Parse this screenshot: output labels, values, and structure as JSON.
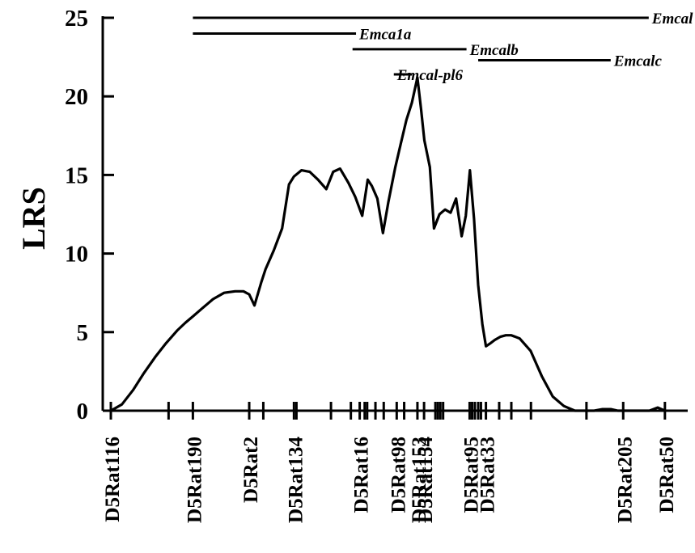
{
  "chart_data": {
    "type": "line",
    "ylabel": "LRS",
    "ylim": [
      0,
      25
    ],
    "y_ticks": [
      0,
      5,
      10,
      15,
      20,
      25
    ],
    "grid": false,
    "markers": [
      {
        "name": "D5Rat116",
        "pos": 0
      },
      {
        "name": "D5Rat190",
        "pos": 29.7
      },
      {
        "name": "D5Rat2",
        "pos": 50.1
      },
      {
        "name": "D5Rat134",
        "pos": 66.3
      },
      {
        "name": "D5Rat16",
        "pos": 90.1
      },
      {
        "name": "D5Rat98",
        "pos": 103.5
      },
      {
        "name": "D5Rat153",
        "pos": 111.0
      },
      {
        "name": "D5Rat154",
        "pos": 113.4
      },
      {
        "name": "D5Rat95",
        "pos": 129.9
      },
      {
        "name": "D5Rat33",
        "pos": 135.8
      },
      {
        "name": "D5Rat205",
        "pos": 185.5
      },
      {
        "name": "D5Rat50",
        "pos": 200.6
      }
    ],
    "extra_tick_positions": [
      20.9,
      55.2,
      67.2,
      79.7,
      86.9,
      91.9,
      92.8,
      95.8,
      98.8,
      106.2,
      117.5,
      118.4,
      119.3,
      120.3,
      130.8,
      131.8,
      133.0,
      134.0,
      140.6,
      145.0,
      152.1,
      172.2
    ],
    "x": [
      0,
      4,
      8,
      12,
      16,
      20,
      24,
      27,
      29.7,
      33,
      37,
      41,
      45,
      48,
      50.1,
      52,
      54.5,
      56,
      59,
      62,
      64.5,
      66.3,
      69,
      72,
      75,
      78,
      80.5,
      83,
      86,
      88.5,
      91,
      93,
      94.5,
      96.5,
      98.5,
      100.5,
      103,
      105,
      107,
      109,
      111,
      112.3,
      113.5,
      115.5,
      117,
      119,
      121,
      123,
      125,
      127,
      128.5,
      130,
      131.5,
      133,
      134.5,
      135.8,
      137.5,
      139,
      141,
      143,
      145,
      148,
      152,
      156,
      160,
      164,
      168,
      172,
      175,
      178,
      181,
      183.5,
      185.5,
      188,
      191,
      195,
      198,
      200.6
    ],
    "values": [
      0,
      0.4,
      1.3,
      2.4,
      3.4,
      4.3,
      5.1,
      5.6,
      6.0,
      6.5,
      7.1,
      7.5,
      7.6,
      7.6,
      7.4,
      6.7,
      8.2,
      9.0,
      10.2,
      11.6,
      14.4,
      14.9,
      15.3,
      15.2,
      14.7,
      14.1,
      15.2,
      15.4,
      14.5,
      13.6,
      12.4,
      14.7,
      14.3,
      13.5,
      11.3,
      13.3,
      15.5,
      17.0,
      18.5,
      19.6,
      21.2,
      19.2,
      17.2,
      15.5,
      11.6,
      12.5,
      12.8,
      12.6,
      13.5,
      11.1,
      12.4,
      15.3,
      12.2,
      8.0,
      5.5,
      4.1,
      4.3,
      4.5,
      4.7,
      4.8,
      4.8,
      4.6,
      3.8,
      2.2,
      0.9,
      0.3,
      0,
      0,
      0,
      0.1,
      0.1,
      0,
      0,
      0,
      0,
      0,
      0.2,
      0
    ],
    "intervals": [
      {
        "label": "Emcal",
        "from": 29.7,
        "to": 200.6,
        "y": 24.7
      },
      {
        "label": "Emcal",
        "from": 29.7,
        "to": 200.6,
        "y": 25
      },
      {
        "label": "Emca1a",
        "from": 29.7,
        "to": 95.8,
        "y": 24.0
      },
      {
        "label": "Emcalb",
        "from": 87.5,
        "to": 135.8,
        "y": 23.0
      },
      {
        "label": "Emcalc",
        "from": 133.0,
        "to": 188.0,
        "y": 22.3
      },
      {
        "label": "Emcal-pl6",
        "from": 109.0,
        "to": 113.0,
        "y": 21.4
      }
    ]
  }
}
